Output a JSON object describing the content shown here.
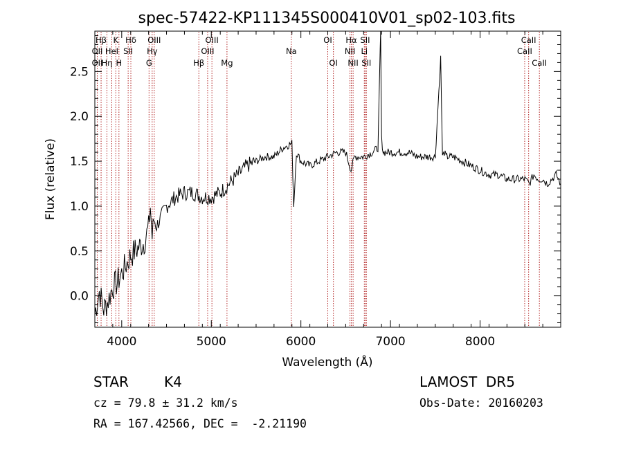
{
  "chart_data": {
    "type": "line",
    "title": "spec-57422-KP111345S000410V01_sp02-103.fits",
    "xlabel": "Wavelength (Å)",
    "ylabel": "Flux (relative)",
    "xlim": [
      3700,
      8900
    ],
    "ylim": [
      -0.35,
      2.95
    ],
    "xticks": [
      4000,
      5000,
      6000,
      7000,
      8000
    ],
    "yticks": [
      0.0,
      0.5,
      1.0,
      1.5,
      2.0,
      2.5
    ],
    "xtick_labels": [
      "4000",
      "5000",
      "6000",
      "7000",
      "8000"
    ],
    "ytick_labels": [
      "0.0",
      "0.5",
      "1.0",
      "1.5",
      "2.0",
      "2.5"
    ],
    "grid": false,
    "series": [
      {
        "x": [
          3700,
          3750,
          3800,
          3850,
          3900,
          3950,
          4000,
          4050,
          4100,
          4150,
          4200,
          4250,
          4300,
          4320,
          4340,
          4360,
          4400,
          4450,
          4500,
          4600,
          4700,
          4800,
          4900,
          5000,
          5100,
          5200,
          5300,
          5400,
          5500,
          5600,
          5700,
          5800,
          5900,
          5920,
          5950,
          6000,
          6100,
          6200,
          6300,
          6400,
          6500,
          6560,
          6600,
          6700,
          6800,
          6860,
          6880,
          6890,
          6900,
          6920,
          7000,
          7100,
          7200,
          7300,
          7400,
          7500,
          7560,
          7580,
          7600,
          7620,
          7700,
          7800,
          7900,
          8000,
          8100,
          8200,
          8300,
          8400,
          8500,
          8550,
          8600,
          8650,
          8700,
          8750,
          8800,
          8850,
          8900
        ],
        "values": [
          -0.2,
          0.05,
          -0.15,
          -0.05,
          0.1,
          0.15,
          0.25,
          0.35,
          0.45,
          0.5,
          0.55,
          0.6,
          0.75,
          1.0,
          0.65,
          0.85,
          0.8,
          0.9,
          1.0,
          1.1,
          1.15,
          1.15,
          1.1,
          1.1,
          1.15,
          1.25,
          1.35,
          1.45,
          1.5,
          1.55,
          1.55,
          1.65,
          1.7,
          1.0,
          1.6,
          1.5,
          1.45,
          1.5,
          1.55,
          1.6,
          1.6,
          1.4,
          1.55,
          1.55,
          1.6,
          1.65,
          2.5,
          2.95,
          1.75,
          1.6,
          1.6,
          1.6,
          1.6,
          1.55,
          1.55,
          1.55,
          2.65,
          1.55,
          1.6,
          1.55,
          1.55,
          1.5,
          1.45,
          1.4,
          1.35,
          1.35,
          1.3,
          1.3,
          1.3,
          1.25,
          1.35,
          1.3,
          1.3,
          1.25,
          1.3,
          1.35,
          1.25
        ]
      }
    ],
    "spectral_lines": [
      {
        "label": "Hβ",
        "wavelength": 3770,
        "row": 1
      },
      {
        "label": "OII",
        "wavelength": 3727,
        "row": 2
      },
      {
        "label": "OII",
        "wavelength": 3727,
        "row": 3
      },
      {
        "label": "K",
        "wavelength": 3934,
        "row": 1
      },
      {
        "label": "HeI",
        "wavelength": 3889,
        "row": 2
      },
      {
        "label": "Hη",
        "wavelength": 3835,
        "row": 3
      },
      {
        "label": "H",
        "wavelength": 3969,
        "row": 3
      },
      {
        "label": "Hδ",
        "wavelength": 4102,
        "row": 1
      },
      {
        "label": "SII",
        "wavelength": 4072,
        "row": 2
      },
      {
        "label": "OIII",
        "wavelength": 4363,
        "row": 1
      },
      {
        "label": "Hγ",
        "wavelength": 4340,
        "row": 2
      },
      {
        "label": "G",
        "wavelength": 4305,
        "row": 3
      },
      {
        "label": "OIII",
        "wavelength": 5007,
        "row": 1
      },
      {
        "label": "OIII",
        "wavelength": 4959,
        "row": 2
      },
      {
        "label": "Hβ",
        "wavelength": 4861,
        "row": 3
      },
      {
        "label": "Mg",
        "wavelength": 5175,
        "row": 3
      },
      {
        "label": "Na",
        "wavelength": 5893,
        "row": 2
      },
      {
        "label": "OI",
        "wavelength": 6300,
        "row": 1
      },
      {
        "label": "OI",
        "wavelength": 6363,
        "row": 3
      },
      {
        "label": "Hα",
        "wavelength": 6563,
        "row": 1
      },
      {
        "label": "NII",
        "wavelength": 6548,
        "row": 2
      },
      {
        "label": "NII",
        "wavelength": 6583,
        "row": 3
      },
      {
        "label": "SII",
        "wavelength": 6717,
        "row": 1
      },
      {
        "label": "Li",
        "wavelength": 6708,
        "row": 2
      },
      {
        "label": "SII",
        "wavelength": 6731,
        "row": 3
      },
      {
        "label": "CaII",
        "wavelength": 8542,
        "row": 1
      },
      {
        "label": "CaII",
        "wavelength": 8498,
        "row": 2
      },
      {
        "label": "CaII",
        "wavelength": 8662,
        "row": 3
      }
    ]
  },
  "info": {
    "object_class": "STAR",
    "subclass": "K4",
    "survey": "LAMOST  DR5",
    "cz": "cz = 79.8 ± 31.2 km/s",
    "obs_date": "Obs-Date: 20160203",
    "coords": "RA = 167.42566, DEC =  -2.21190"
  },
  "colors": {
    "spectrum": "#000000",
    "line_markers": "#b22222",
    "axes": "#000000",
    "background": "#ffffff"
  }
}
